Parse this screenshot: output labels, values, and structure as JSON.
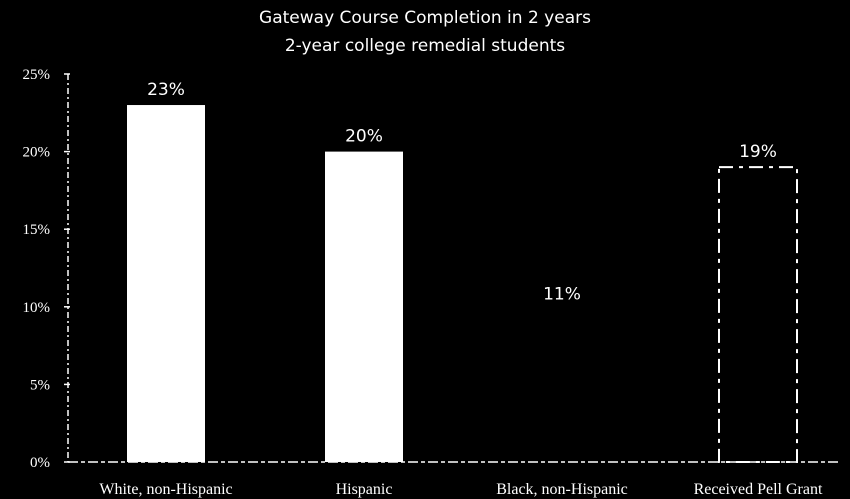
{
  "chart_data": {
    "type": "bar",
    "title": "Gateway Course Completion in 2 years",
    "subtitle": "2-year college remedial students",
    "categories": [
      "White, non-Hispanic",
      "Hispanic",
      "Black, non-Hispanic",
      "Received Pell Grant"
    ],
    "values": [
      23,
      20,
      11,
      19
    ],
    "data_labels": [
      "23%",
      "20%",
      "11%",
      "19%"
    ],
    "bar_styles": [
      "solid",
      "solid",
      "hidden",
      "dashed-outline"
    ],
    "ylim": [
      0,
      25
    ],
    "yticks": [
      0,
      5,
      10,
      15,
      20,
      25
    ],
    "ytick_labels": [
      "0%",
      "5%",
      "10%",
      "15%",
      "20%",
      "25%"
    ],
    "grid": false,
    "colors": {
      "background": "#000000",
      "bar": "#ffffff",
      "text": "#ffffff"
    }
  }
}
